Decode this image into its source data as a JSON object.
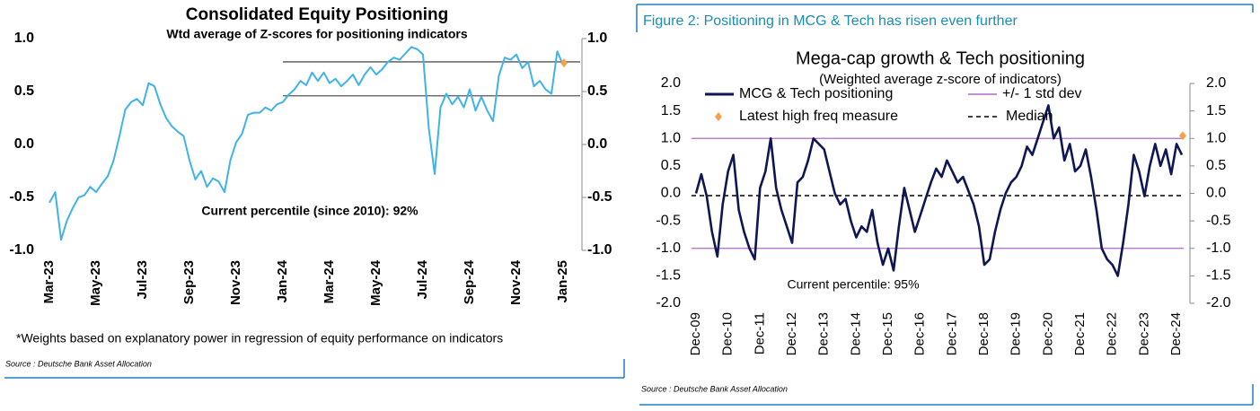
{
  "chart_data": [
    {
      "type": "line",
      "title": "Consolidated Equity Positioning",
      "subtitle": "Wtd average of Z-scores for positioning indicators",
      "annotation": "Current percentile (since 2010): 92%",
      "note": "*Weights based on explanatory power in regression of equity performance on indicators",
      "source": "Source : Deutsche Bank Asset Allocation",
      "categories": [
        "Mar-23",
        null,
        null,
        null,
        null,
        null,
        null,
        null,
        "May-23",
        null,
        null,
        null,
        null,
        null,
        null,
        null,
        "Jul-23",
        null,
        null,
        null,
        null,
        null,
        null,
        null,
        "Sep-23",
        null,
        null,
        null,
        null,
        null,
        null,
        null,
        "Nov-23",
        null,
        null,
        null,
        null,
        null,
        null,
        null,
        "Jan-24",
        null,
        null,
        null,
        null,
        null,
        null,
        null,
        "Mar-24",
        null,
        null,
        null,
        null,
        null,
        null,
        null,
        "May-24",
        null,
        null,
        null,
        null,
        null,
        null,
        null,
        "Jul-24",
        null,
        null,
        null,
        null,
        null,
        null,
        null,
        "Sep-24",
        null,
        null,
        null,
        null,
        null,
        null,
        null,
        "Nov-24",
        null,
        null,
        null,
        null,
        null,
        null,
        null,
        "Jan-25"
      ],
      "series": [
        {
          "color": "#3fb3e6",
          "values": [
            -0.55,
            -0.45,
            -0.9,
            -0.72,
            -0.6,
            -0.5,
            -0.48,
            -0.4,
            -0.45,
            -0.37,
            -0.3,
            -0.15,
            0.08,
            0.33,
            0.4,
            0.43,
            0.37,
            0.58,
            0.55,
            0.38,
            0.25,
            0.17,
            0.12,
            0.08,
            -0.15,
            -0.33,
            -0.25,
            -0.4,
            -0.32,
            -0.35,
            -0.45,
            -0.15,
            0.02,
            0.1,
            0.28,
            0.3,
            0.3,
            0.35,
            0.32,
            0.38,
            0.4,
            0.47,
            0.52,
            0.6,
            0.56,
            0.68,
            0.6,
            0.68,
            0.58,
            0.62,
            0.55,
            0.6,
            0.66,
            0.56,
            0.66,
            0.73,
            0.66,
            0.71,
            0.78,
            0.82,
            0.8,
            0.86,
            0.92,
            0.9,
            0.85,
            0.15,
            -0.28,
            0.35,
            0.48,
            0.38,
            0.45,
            0.35,
            0.52,
            0.32,
            0.45,
            0.32,
            0.22,
            0.65,
            0.82,
            0.8,
            0.85,
            0.72,
            0.78,
            0.55,
            0.6,
            0.52,
            0.48,
            0.88,
            0.75
          ]
        }
      ],
      "latest_marker": {
        "value": 0.77,
        "color": "#f5a04a"
      },
      "hlines": [
        {
          "value": 0.78,
          "color": "#555555",
          "x_start": "Jan-24"
        },
        {
          "value": 0.46,
          "color": "#555555",
          "x_start": "Jan-24"
        }
      ],
      "ylim": [
        -1,
        1
      ],
      "yticks": [
        {
          "value": 1,
          "label": "1.0"
        },
        0.5,
        {
          "value": 0,
          "label": "0.0"
        },
        -0.5,
        {
          "value": -1,
          "label": "-1.0"
        }
      ],
      "y2lim": [
        -1,
        1
      ],
      "y2ticks": [
        {
          "value": 1,
          "label": "1.0"
        },
        0.5,
        {
          "value": 0,
          "label": "0.0"
        },
        -0.5,
        {
          "value": -1,
          "label": "-1.0"
        }
      ],
      "legend": false
    },
    {
      "type": "line",
      "figure_title": "Figure 2: Positioning in MCG & Tech has risen even further",
      "title": "Mega-cap growth & Tech positioning",
      "subtitle": "(Weighted average z-score of indicators)",
      "annotation": "Current percentile: 95%",
      "source": "Source : Deutsche Bank Asset Allocation",
      "categories": [
        "Dec-09",
        null,
        null,
        null,
        null,
        null,
        "Dec-10",
        null,
        null,
        null,
        null,
        null,
        "Dec-11",
        null,
        null,
        null,
        null,
        null,
        "Dec-12",
        null,
        null,
        null,
        null,
        null,
        "Dec-13",
        null,
        null,
        null,
        null,
        null,
        "Dec-14",
        null,
        null,
        null,
        null,
        null,
        "Dec-15",
        null,
        null,
        null,
        null,
        null,
        "Dec-16",
        null,
        null,
        null,
        null,
        null,
        "Dec-17",
        null,
        null,
        null,
        null,
        null,
        "Dec-18",
        null,
        null,
        null,
        null,
        null,
        "Dec-19",
        null,
        null,
        null,
        null,
        null,
        "Dec-20",
        null,
        null,
        null,
        null,
        null,
        "Dec-21",
        null,
        null,
        null,
        null,
        null,
        "Dec-22",
        null,
        null,
        null,
        null,
        null,
        "Dec-23",
        null,
        null,
        null,
        null,
        null,
        "Dec-24",
        null
      ],
      "series": [
        {
          "name": "MCG & Tech positioning",
          "color": "#0e1653",
          "values": [
            0.0,
            0.35,
            -0.05,
            -0.7,
            -1.15,
            -0.2,
            0.4,
            0.7,
            -0.3,
            -0.7,
            -1.0,
            -1.2,
            0.1,
            0.4,
            1.0,
            0.1,
            -0.3,
            -0.6,
            -0.9,
            0.2,
            0.3,
            0.6,
            1.0,
            0.9,
            0.8,
            0.4,
            0.0,
            -0.2,
            -0.1,
            -0.5,
            -0.8,
            -0.6,
            -0.7,
            -0.3,
            -0.9,
            -1.3,
            -1.0,
            -1.4,
            -0.6,
            0.1,
            -0.3,
            -0.7,
            -0.4,
            -0.1,
            0.2,
            0.45,
            0.3,
            0.6,
            0.4,
            0.2,
            0.3,
            0.05,
            -0.2,
            -0.6,
            -1.3,
            -1.2,
            -0.7,
            -0.3,
            0.0,
            0.2,
            0.3,
            0.5,
            0.85,
            0.7,
            1.0,
            1.3,
            1.6,
            1.0,
            1.2,
            0.6,
            0.9,
            0.4,
            0.5,
            0.8,
            0.3,
            -0.3,
            -1.0,
            -1.2,
            -1.3,
            -1.5,
            -0.9,
            -0.2,
            0.7,
            0.4,
            -0.05,
            0.5,
            0.9,
            0.5,
            0.8,
            0.35,
            0.9,
            0.7
          ]
        }
      ],
      "latest_marker": {
        "name": "Latest high freq measure",
        "value": 1.05,
        "color": "#f5a04a"
      },
      "hlines": [
        {
          "name": "+/- 1 std dev",
          "color": "#b266cc",
          "values": [
            1,
            -1
          ]
        },
        {
          "name": "Median",
          "color": "#000000",
          "dashed": true,
          "values": [
            -0.04
          ]
        }
      ],
      "ylim": [
        -2,
        2
      ],
      "yticks": [
        {
          "value": 2,
          "label": "2.0"
        },
        1.5,
        {
          "value": 1,
          "label": "1.0"
        },
        0.5,
        {
          "value": 0,
          "label": "0.0"
        },
        -0.5,
        {
          "value": -1,
          "label": "-1.0"
        },
        -1.5,
        {
          "value": -2,
          "label": "-2.0"
        }
      ],
      "y2lim": [
        -2,
        2
      ],
      "y2ticks": [
        {
          "value": 2,
          "label": "2.0"
        },
        1.5,
        {
          "value": 1,
          "label": "1.0"
        },
        0.5,
        {
          "value": 0,
          "label": "0.0"
        },
        -0.5,
        {
          "value": -1,
          "label": "-1.0"
        },
        -1.5,
        {
          "value": -2,
          "label": "-2.0"
        }
      ],
      "legend": true
    }
  ]
}
